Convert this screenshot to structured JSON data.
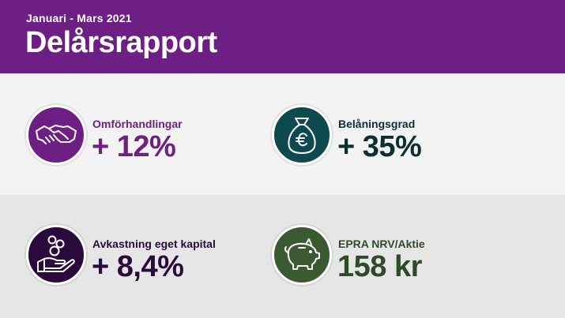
{
  "header": {
    "subtitle": "Januari - Mars 2021",
    "title": "Delårsrapport"
  },
  "kpis": [
    {
      "label": "Omförhandlingar",
      "value": "+ 12%",
      "icon": "handshake-icon",
      "circle_color": "#6e1f84",
      "label_color": "#6e1f84",
      "value_color": "#6e1f84"
    },
    {
      "label": "Belåningsgrad",
      "value": "+ 35%",
      "icon": "euro-money-bag-icon",
      "circle_color": "#0d4a4f",
      "label_color": "#0d2f33",
      "value_color": "#0d2f33"
    },
    {
      "label": "Avkastning eget kapital",
      "value": "+ 8,4%",
      "icon": "coins-in-hand-icon",
      "circle_color": "#2a0a3d",
      "label_color": "#2a0a3d",
      "value_color": "#2a0a3d"
    },
    {
      "label": "EPRA NRV/Aktie",
      "value": "158 kr",
      "icon": "piggy-bank-icon",
      "circle_color": "#3c5a32",
      "label_color": "#2f4a28",
      "value_color": "#2f4a28"
    }
  ]
}
